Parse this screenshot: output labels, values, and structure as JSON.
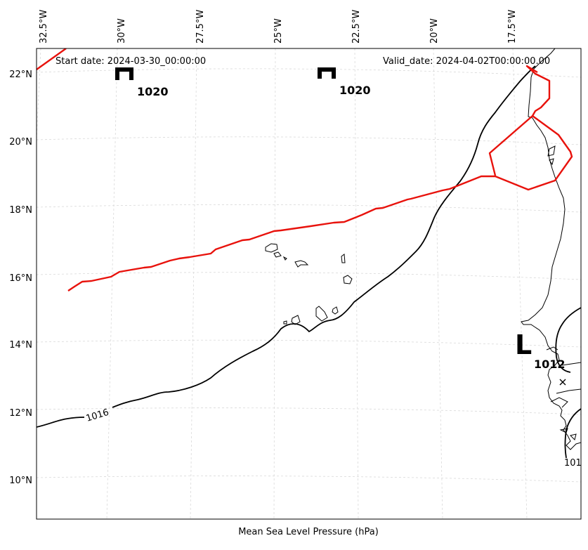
{
  "map": {
    "xlabel": "Mean Sea Level Pressure (hPa)",
    "start_date": "Start date: 2024-03-30_00:00:00",
    "valid_date": "Valid_date: 2024-04-02T00:00:00.00",
    "lon_ticks": [
      "32.5°W",
      "30°W",
      "27.5°W",
      "25°W",
      "22.5°W",
      "20°W",
      "17.5°W"
    ],
    "lat_ticks": [
      "22°N",
      "20°N",
      "18°N",
      "16°N",
      "14°N",
      "12°N",
      "10°N"
    ],
    "pressure_centers": [
      {
        "type": "H",
        "value": "1020"
      },
      {
        "type": "H",
        "value": "1020"
      },
      {
        "type": "L",
        "value": "1012"
      }
    ],
    "contour_labels": [
      "1016",
      "101"
    ],
    "colors": {
      "track": "#e8120c",
      "isobar": "#000000",
      "grid": "#d9d9d9"
    }
  }
}
